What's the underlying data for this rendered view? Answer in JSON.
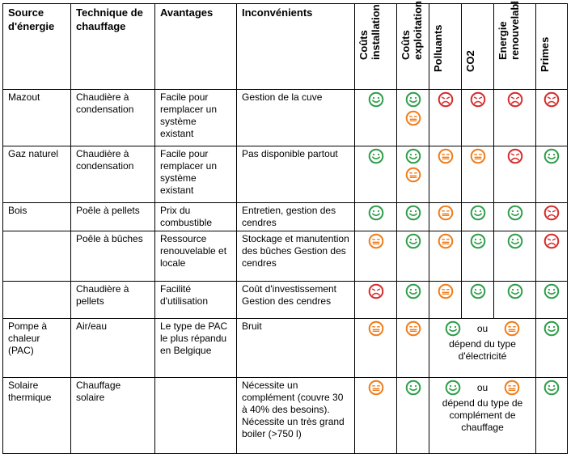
{
  "colors": {
    "green": "#2e9e4a",
    "orange": "#f07d1a",
    "red": "#d62b2b"
  },
  "headers": {
    "source": "Source d'énergie",
    "technique": "Technique de chauffage",
    "avantages": "Avantages",
    "inconvenients": "Inconvénients",
    "couts_installation": [
      "Coûts",
      "installation"
    ],
    "couts_exploitation": [
      "Coûts",
      "exploitation"
    ],
    "polluants": "Polluants",
    "co2": "CO2",
    "energie_renouvelable": [
      "Energie",
      "renouvelabl"
    ],
    "primes": "Primes"
  },
  "rows": [
    {
      "source": "Mazout",
      "technique": "Chaudière à condensation",
      "avantages": "Facile pour remplacer un système existant",
      "inconvenients": "Gestion de la cuve",
      "couts_installation": [
        "green"
      ],
      "couts_exploitation": [
        "green",
        "orange"
      ],
      "polluants": [
        "red"
      ],
      "co2": [
        "red"
      ],
      "energie_renouvelable": [
        "red"
      ],
      "primes": [
        "red"
      ]
    },
    {
      "source": "Gaz naturel",
      "technique": "Chaudière à condensation",
      "avantages": "Facile pour remplacer un système existant",
      "inconvenients": "Pas disponible partout",
      "couts_installation": [
        "green"
      ],
      "couts_exploitation": [
        "green",
        "orange"
      ],
      "polluants": [
        "orange"
      ],
      "co2": [
        "orange"
      ],
      "energie_renouvelable": [
        "red"
      ],
      "primes": [
        "green"
      ]
    },
    {
      "source": "Bois",
      "technique": "Poêle à pellets",
      "avantages": "Prix du combustible",
      "inconvenients": "Entretien, gestion des cendres",
      "couts_installation": [
        "green"
      ],
      "couts_exploitation": [
        "green"
      ],
      "polluants": [
        "orange"
      ],
      "co2": [
        "green"
      ],
      "energie_renouvelable": [
        "green"
      ],
      "primes": [
        "red"
      ]
    },
    {
      "source": "",
      "technique": "Poêle à bûches",
      "avantages": "Ressource renouvelable et locale",
      "inconvenients": "Stockage et manutention des bûches Gestion des cendres",
      "couts_installation": [
        "orange"
      ],
      "couts_exploitation": [
        "green"
      ],
      "polluants": [
        "orange"
      ],
      "co2": [
        "green"
      ],
      "energie_renouvelable": [
        "green"
      ],
      "primes": [
        "red"
      ]
    },
    {
      "source": "",
      "technique": "Chaudière à pellets",
      "avantages": "Facilité d'utilisation",
      "inconvenients": "Coût d'investissement Gestion des cendres",
      "couts_installation": [
        "red"
      ],
      "couts_exploitation": [
        "green"
      ],
      "polluants": [
        "orange"
      ],
      "co2": [
        "green"
      ],
      "energie_renouvelable": [
        "green"
      ],
      "primes": [
        "green"
      ]
    },
    {
      "source": "Pompe à chaleur (PAC)",
      "technique": "Air/eau",
      "avantages": "Le type de PAC le plus répandu en Belgique",
      "inconvenients": "Bruit",
      "couts_installation": [
        "orange"
      ],
      "couts_exploitation": [
        "orange"
      ],
      "merged": {
        "first": "green",
        "or": "ou",
        "second": "orange",
        "note": "dépend du type d'électricité"
      },
      "primes": [
        "green"
      ]
    },
    {
      "source": "Solaire thermique",
      "technique": "Chauffage solaire",
      "avantages": "",
      "inconvenients": "Nécessite un complément (couvre 30 à 40% des besoins). Nécessite un très grand boiler (>750 l)",
      "couts_installation": [
        "orange"
      ],
      "couts_exploitation": [
        "green"
      ],
      "merged": {
        "first": "green",
        "or": "ou",
        "second": "orange",
        "note": "dépend du type de complément de chauffage"
      },
      "primes": [
        "green"
      ]
    }
  ]
}
